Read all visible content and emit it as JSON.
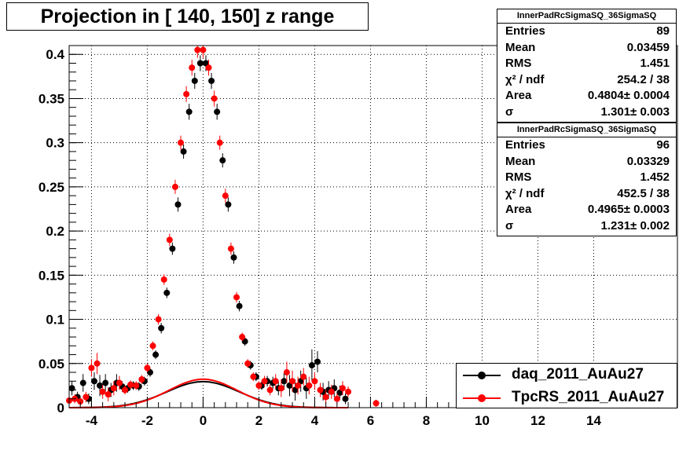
{
  "title": "Projection in [ 140, 150] z range",
  "colors": {
    "series1": "#000000",
    "series2": "#ff0000",
    "grid": "#000000",
    "background": "#ffffff"
  },
  "stats_boxes": [
    {
      "name": "InnerPadRcSigmaSQ_36SigmaSQ",
      "rows": [
        {
          "key": "Entries",
          "value": "89"
        },
        {
          "key": "Mean",
          "value": "0.03459"
        },
        {
          "key": "RMS",
          "value": "1.451"
        },
        {
          "key": "χ² / ndf",
          "value": "254.2 / 38"
        },
        {
          "key": "Area",
          "value": "0.4804± 0.0004"
        },
        {
          "key": "σ",
          "value": "1.301± 0.003"
        }
      ]
    },
    {
      "name": "InnerPadRcSigmaSQ_36SigmaSQ",
      "rows": [
        {
          "key": "Entries",
          "value": "96"
        },
        {
          "key": "Mean",
          "value": "0.03329"
        },
        {
          "key": "RMS",
          "value": "1.452"
        },
        {
          "key": "χ² / ndf",
          "value": "452.5 / 38"
        },
        {
          "key": "Area",
          "value": "0.4965± 0.0003"
        },
        {
          "key": "σ",
          "value": "1.231± 0.002"
        }
      ]
    }
  ],
  "legend": [
    {
      "label": "daq_2011_AuAu27",
      "color": "#000000"
    },
    {
      "label": "TpcRS_2011_AuAu27",
      "color": "#ff0000"
    }
  ],
  "chart_data": {
    "type": "scatter",
    "title": "Projection in [ 140, 150] z range",
    "xlabel": "",
    "ylabel": "",
    "xlim": [
      -4.8,
      17.0
    ],
    "ylim": [
      0,
      0.41
    ],
    "x_ticks": [
      -4,
      -2,
      0,
      2,
      4,
      6,
      8,
      10,
      12,
      14
    ],
    "y_ticks": [
      0,
      0.05,
      0.1,
      0.15,
      0.2,
      0.25,
      0.3,
      0.35,
      0.4
    ],
    "x_tick_labels": [
      "-4",
      "-2",
      "0",
      "2",
      "4",
      "6",
      "8",
      "10",
      "12",
      "14"
    ],
    "y_tick_labels": [
      "0",
      "0.05",
      "0.1",
      "0.15",
      "0.2",
      "0.25",
      "0.3",
      "0.35",
      "0.4"
    ],
    "grid": true,
    "legend_position": "bottom-right",
    "series": [
      {
        "name": "daq_2011_AuAu27",
        "color": "#000000",
        "x": [
          -4.7,
          -4.5,
          -4.3,
          -4.1,
          -3.9,
          -3.7,
          -3.5,
          -3.3,
          -3.1,
          -2.9,
          -2.7,
          -2.5,
          -2.3,
          -2.1,
          -1.9,
          -1.7,
          -1.5,
          -1.3,
          -1.1,
          -0.9,
          -0.7,
          -0.5,
          -0.3,
          -0.1,
          0.1,
          0.3,
          0.5,
          0.7,
          0.9,
          1.1,
          1.3,
          1.5,
          1.7,
          1.9,
          2.1,
          2.3,
          2.5,
          2.7,
          2.9,
          3.1,
          3.3,
          3.5,
          3.7,
          3.9,
          4.1,
          4.3,
          4.5,
          4.7,
          4.9,
          5.1
        ],
        "y": [
          0.022,
          0.012,
          0.028,
          0.01,
          0.03,
          0.025,
          0.028,
          0.02,
          0.028,
          0.024,
          0.022,
          0.025,
          0.024,
          0.03,
          0.04,
          0.06,
          0.09,
          0.13,
          0.18,
          0.23,
          0.29,
          0.335,
          0.37,
          0.39,
          0.39,
          0.37,
          0.335,
          0.28,
          0.23,
          0.17,
          0.115,
          0.075,
          0.048,
          0.035,
          0.025,
          0.03,
          0.028,
          0.022,
          0.03,
          0.025,
          0.02,
          0.03,
          0.022,
          0.048,
          0.052,
          0.018,
          0.02,
          0.022,
          0.017,
          0.01
        ],
        "err": [
          0.008,
          0.006,
          0.01,
          0.006,
          0.01,
          0.012,
          0.01,
          0.008,
          0.01,
          0.006,
          0.005,
          0.005,
          0.005,
          0.005,
          0.005,
          0.005,
          0.006,
          0.006,
          0.007,
          0.008,
          0.008,
          0.009,
          0.009,
          0.009,
          0.009,
          0.009,
          0.009,
          0.008,
          0.008,
          0.007,
          0.006,
          0.005,
          0.005,
          0.005,
          0.005,
          0.006,
          0.007,
          0.008,
          0.01,
          0.012,
          0.012,
          0.012,
          0.012,
          0.018,
          0.012,
          0.01,
          0.01,
          0.01,
          0.008,
          0.006
        ],
        "fit": {
          "area": 0.4804,
          "sigma": 1.301,
          "mean": 0.0,
          "bin_width": 0.2
        }
      },
      {
        "name": "TpcRS_2011_AuAu27",
        "color": "#ff0000",
        "x": [
          -4.8,
          -4.6,
          -4.4,
          -4.2,
          -4.0,
          -3.8,
          -3.6,
          -3.4,
          -3.2,
          -3.0,
          -2.8,
          -2.6,
          -2.4,
          -2.2,
          -2.0,
          -1.8,
          -1.6,
          -1.4,
          -1.2,
          -1.0,
          -0.8,
          -0.6,
          -0.4,
          -0.2,
          0.0,
          0.2,
          0.4,
          0.6,
          0.8,
          1.0,
          1.2,
          1.4,
          1.6,
          1.8,
          2.0,
          2.2,
          2.4,
          2.6,
          2.8,
          3.0,
          3.2,
          3.4,
          3.6,
          3.8,
          4.0,
          4.2,
          4.4,
          4.6,
          4.8,
          5.0,
          5.2,
          6.2
        ],
        "y": [
          0.008,
          0.01,
          0.007,
          0.012,
          0.045,
          0.05,
          0.018,
          0.015,
          0.022,
          0.028,
          0.02,
          0.026,
          0.025,
          0.032,
          0.045,
          0.07,
          0.1,
          0.145,
          0.19,
          0.25,
          0.3,
          0.355,
          0.385,
          0.405,
          0.405,
          0.385,
          0.35,
          0.3,
          0.24,
          0.18,
          0.125,
          0.08,
          0.05,
          0.035,
          0.025,
          0.03,
          0.02,
          0.03,
          0.022,
          0.04,
          0.03,
          0.025,
          0.035,
          0.025,
          0.03,
          0.02,
          0.012,
          0.018,
          0.01,
          0.022,
          0.018,
          0.005
        ],
        "err": [
          0.004,
          0.005,
          0.004,
          0.006,
          0.01,
          0.012,
          0.008,
          0.008,
          0.008,
          0.008,
          0.005,
          0.005,
          0.005,
          0.005,
          0.005,
          0.005,
          0.006,
          0.006,
          0.007,
          0.008,
          0.008,
          0.009,
          0.009,
          0.009,
          0.009,
          0.009,
          0.009,
          0.008,
          0.008,
          0.007,
          0.006,
          0.005,
          0.005,
          0.005,
          0.005,
          0.006,
          0.006,
          0.008,
          0.01,
          0.012,
          0.012,
          0.01,
          0.01,
          0.01,
          0.01,
          0.008,
          0.008,
          0.008,
          0.006,
          0.008,
          0.006,
          0.004
        ],
        "fit": {
          "area": 0.4965,
          "sigma": 1.231,
          "mean": 0.0,
          "bin_width": 0.2
        }
      }
    ]
  }
}
